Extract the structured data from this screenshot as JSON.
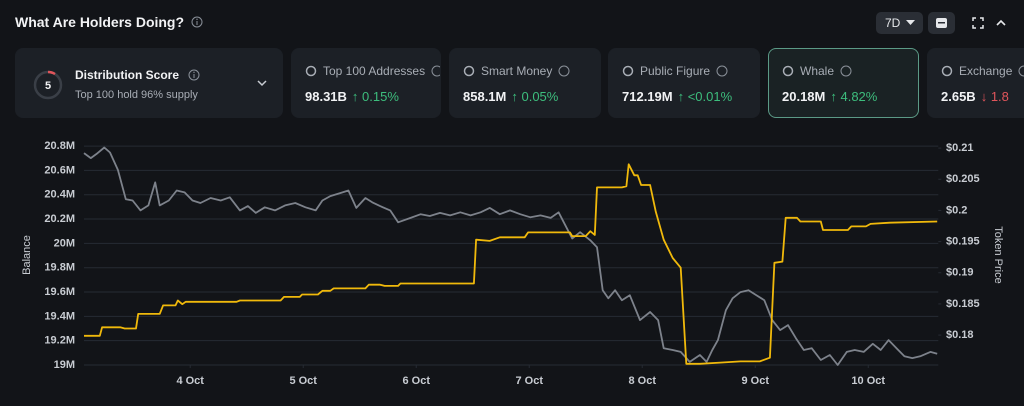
{
  "header": {
    "title": "What Are Holders Doing?",
    "range": "7D"
  },
  "score": {
    "value": 5,
    "title": "Distribution Score",
    "subtitle": "Top 100 hold 96% supply"
  },
  "cards": [
    {
      "label": "Top 100 Addresses",
      "value": "98.31B",
      "change": "↑ 0.15%",
      "change_color": "#3dbd7d",
      "selected": false
    },
    {
      "label": "Smart Money",
      "value": "858.1M",
      "change": "↑ 0.05%",
      "change_color": "#3dbd7d",
      "selected": false
    },
    {
      "label": "Public Figure",
      "value": "712.19M",
      "change": "↑ <0.01%",
      "change_color": "#3dbd7d",
      "selected": false
    },
    {
      "label": "Whale",
      "value": "20.18M",
      "change": "↑ 4.82%",
      "change_color": "#3dbd7d",
      "selected": true
    },
    {
      "label": "Exchange",
      "value": "2.65B",
      "change": "↓ 1.8",
      "change_color": "#e0555b",
      "selected": false
    }
  ],
  "chart_data": {
    "type": "line",
    "ylabel": "Balance",
    "y2label": "Token Price",
    "grid": true,
    "xlim": [
      3.06,
      10.62
    ],
    "xticks": [
      {
        "value": 4,
        "label": "4 Oct"
      },
      {
        "value": 5,
        "label": "5 Oct"
      },
      {
        "value": 6,
        "label": "6 Oct"
      },
      {
        "value": 7,
        "label": "7 Oct"
      },
      {
        "value": 8,
        "label": "8 Oct"
      },
      {
        "value": 9,
        "label": "9 Oct"
      },
      {
        "value": 10,
        "label": "10 Oct"
      }
    ],
    "ylim": [
      19000000,
      20850000
    ],
    "yticks": [
      {
        "value": 19000000,
        "label": "19M"
      },
      {
        "value": 19200000,
        "label": "19.2M"
      },
      {
        "value": 19400000,
        "label": "19.4M"
      },
      {
        "value": 19600000,
        "label": "19.6M"
      },
      {
        "value": 19800000,
        "label": "19.8M"
      },
      {
        "value": 20000000,
        "label": "20M"
      },
      {
        "value": 20200000,
        "label": "20.2M"
      },
      {
        "value": 20400000,
        "label": "20.4M"
      },
      {
        "value": 20600000,
        "label": "20.6M"
      },
      {
        "value": 20800000,
        "label": "20.8M"
      }
    ],
    "y2lim": [
      0.1752,
      0.2113
    ],
    "y2ticks": [
      {
        "value": 0.18,
        "label": "$0.18"
      },
      {
        "value": 0.185,
        "label": "$0.185"
      },
      {
        "value": 0.19,
        "label": "$0.19"
      },
      {
        "value": 0.195,
        "label": "$0.195"
      },
      {
        "value": 0.2,
        "label": "$0.2"
      },
      {
        "value": 0.205,
        "label": "$0.205"
      },
      {
        "value": 0.21,
        "label": "$0.21"
      }
    ],
    "series": [
      {
        "color": "#f0b90b",
        "axis": "y",
        "x": [
          3.06,
          3.2,
          3.22,
          3.38,
          3.42,
          3.52,
          3.54,
          3.73,
          3.76,
          3.87,
          3.89,
          3.93,
          3.96,
          4.41,
          4.44,
          4.8,
          4.83,
          4.97,
          4.99,
          5.13,
          5.17,
          5.24,
          5.27,
          5.55,
          5.58,
          5.68,
          5.72,
          5.84,
          5.86,
          6.12,
          6.16,
          6.51,
          6.53,
          6.65,
          6.74,
          6.96,
          6.99,
          7.36,
          7.38,
          7.5,
          7.54,
          7.58,
          7.6,
          7.82,
          7.86,
          7.88,
          7.93,
          7.96,
          7.99,
          8.07,
          8.12,
          8.19,
          8.27,
          8.34,
          8.39,
          8.51,
          8.69,
          8.87,
          9.04,
          9.13,
          9.17,
          9.24,
          9.27,
          9.37,
          9.4,
          9.58,
          9.6,
          9.82,
          9.85,
          9.98,
          10.02,
          10.19,
          10.61
        ],
        "values": [
          19240000,
          19240000,
          19310000,
          19310000,
          19300000,
          19300000,
          19420000,
          19420000,
          19490000,
          19490000,
          19530000,
          19500000,
          19520000,
          19520000,
          19530000,
          19530000,
          19560000,
          19560000,
          19580000,
          19580000,
          19610000,
          19610000,
          19630000,
          19630000,
          19660000,
          19660000,
          19650000,
          19650000,
          19670000,
          19670000,
          19670000,
          19670000,
          20030000,
          20020000,
          20050000,
          20050000,
          20090000,
          20090000,
          20060000,
          20060000,
          20100000,
          20070000,
          20460000,
          20460000,
          20470000,
          20650000,
          20560000,
          20560000,
          20480000,
          20480000,
          20260000,
          20030000,
          19880000,
          19800000,
          19010000,
          19010000,
          19020000,
          19030000,
          19030000,
          19060000,
          19840000,
          19850000,
          20210000,
          20210000,
          20180000,
          20180000,
          20110000,
          20110000,
          20140000,
          20140000,
          20160000,
          20170000,
          20180000
        ]
      },
      {
        "color": "#7d828b",
        "axis": "y2",
        "x": [
          3.06,
          3.12,
          3.18,
          3.24,
          3.29,
          3.36,
          3.43,
          3.49,
          3.56,
          3.63,
          3.69,
          3.73,
          3.81,
          3.88,
          3.95,
          4.02,
          4.09,
          4.18,
          4.27,
          4.35,
          4.44,
          4.51,
          4.58,
          4.66,
          4.75,
          4.84,
          4.93,
          5.02,
          5.11,
          5.17,
          5.24,
          5.33,
          5.4,
          5.47,
          5.55,
          5.61,
          5.68,
          5.77,
          5.84,
          5.95,
          6.04,
          6.12,
          6.21,
          6.3,
          6.39,
          6.48,
          6.57,
          6.65,
          6.74,
          6.83,
          6.92,
          7.01,
          7.1,
          7.19,
          7.26,
          7.32,
          7.38,
          7.45,
          7.54,
          7.6,
          7.65,
          7.7,
          7.76,
          7.82,
          7.89,
          7.98,
          8.07,
          8.14,
          8.19,
          8.27,
          8.34,
          8.42,
          8.51,
          8.57,
          8.62,
          8.67,
          8.74,
          8.8,
          8.87,
          8.94,
          9.01,
          9.08,
          9.15,
          9.22,
          9.29,
          9.36,
          9.43,
          9.5,
          9.58,
          9.66,
          9.73,
          9.81,
          9.88,
          9.96,
          10.04,
          10.11,
          10.18,
          10.25,
          10.32,
          10.39,
          10.46,
          10.55,
          10.61
        ],
        "values": [
          0.2092,
          0.2084,
          0.2092,
          0.2101,
          0.2093,
          0.2065,
          0.2018,
          0.2016,
          0.2,
          0.2008,
          0.2045,
          0.2008,
          0.2016,
          0.2032,
          0.2029,
          0.2016,
          0.2012,
          0.202,
          0.2016,
          0.2021,
          0.2,
          0.2007,
          0.1996,
          0.2005,
          0.2,
          0.2008,
          0.2012,
          0.2005,
          0.2,
          0.2016,
          0.2023,
          0.2028,
          0.2032,
          0.2004,
          0.202,
          0.2013,
          0.2007,
          0.2,
          0.1981,
          0.1988,
          0.1994,
          0.1991,
          0.1996,
          0.1992,
          0.1997,
          0.1992,
          0.1997,
          0.2004,
          0.1994,
          0.2,
          0.1994,
          0.1989,
          0.1992,
          0.1988,
          0.1997,
          0.1976,
          0.1955,
          0.1965,
          0.1952,
          0.1941,
          0.1872,
          0.1859,
          0.1872,
          0.1856,
          0.1864,
          0.1824,
          0.1837,
          0.1824,
          0.1779,
          0.1776,
          0.1773,
          0.1757,
          0.1768,
          0.1757,
          0.1776,
          0.1792,
          0.184,
          0.1859,
          0.1869,
          0.1872,
          0.1864,
          0.1856,
          0.1824,
          0.1808,
          0.1816,
          0.1795,
          0.1776,
          0.1779,
          0.176,
          0.1768,
          0.1752,
          0.1773,
          0.1776,
          0.1773,
          0.1786,
          0.1776,
          0.1792,
          0.1779,
          0.1766,
          0.1763,
          0.1766,
          0.1773,
          0.177
        ]
      }
    ]
  }
}
